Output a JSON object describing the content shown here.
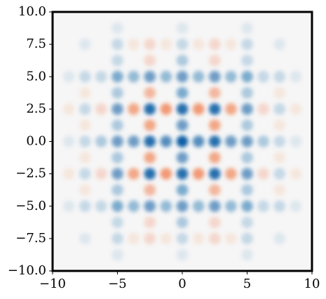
{
  "chart_data": {
    "type": "heatmap",
    "x": [
      -8.75,
      -7.5,
      -6.25,
      -5,
      -3.75,
      -2.5,
      -1.25,
      0,
      1.25,
      2.5,
      3.75,
      5,
      6.25,
      7.5,
      8.75
    ],
    "y": [
      -8.75,
      -7.5,
      -6.25,
      -5,
      -3.75,
      -2.5,
      -1.25,
      0,
      1.25,
      2.5,
      3.75,
      5,
      6.25,
      7.5,
      8.75
    ],
    "z": [
      [
        0,
        0,
        0,
        0.1,
        0,
        0,
        0,
        0.1,
        0,
        0,
        0,
        0.1,
        0,
        0,
        0
      ],
      [
        0,
        0.1,
        0,
        0.2,
        -0.1,
        -0.2,
        -0.1,
        0.2,
        -0.1,
        -0.2,
        -0.1,
        0.2,
        0,
        0.1,
        0
      ],
      [
        0,
        0,
        0,
        0.2,
        0,
        -0.2,
        0,
        0.3,
        0,
        -0.2,
        0,
        0.2,
        0,
        0,
        0
      ],
      [
        0.1,
        0.2,
        0.2,
        0.5,
        0.4,
        0.6,
        0.4,
        0.6,
        0.4,
        0.6,
        0.4,
        0.5,
        0.2,
        0.2,
        0.1
      ],
      [
        0,
        -0.1,
        0,
        0.3,
        0,
        -0.4,
        0,
        0.5,
        0,
        -0.4,
        0,
        0.3,
        0,
        -0.1,
        0
      ],
      [
        -0.1,
        0.2,
        -0.2,
        0.6,
        -0.5,
        0.9,
        -0.6,
        0.9,
        -0.6,
        0.9,
        -0.5,
        0.6,
        -0.2,
        0.2,
        -0.1
      ],
      [
        0,
        -0.1,
        0,
        0.3,
        0,
        -0.5,
        0,
        0.6,
        0,
        -0.5,
        0,
        0.3,
        0,
        -0.1,
        0
      ],
      [
        0.1,
        0.2,
        0.3,
        0.6,
        0.6,
        0.9,
        0.7,
        1.0,
        0.7,
        0.9,
        0.6,
        0.6,
        0.3,
        0.2,
        0.1
      ],
      [
        0,
        -0.1,
        0,
        0.3,
        0,
        -0.5,
        0,
        0.6,
        0,
        -0.5,
        0,
        0.3,
        0,
        -0.1,
        0
      ],
      [
        -0.1,
        0.2,
        -0.2,
        0.6,
        -0.5,
        0.9,
        -0.6,
        0.9,
        -0.6,
        0.9,
        -0.5,
        0.6,
        -0.2,
        0.2,
        -0.1
      ],
      [
        0,
        -0.1,
        0,
        0.3,
        0,
        -0.4,
        0,
        0.5,
        0,
        -0.4,
        0,
        0.3,
        0,
        -0.1,
        0
      ],
      [
        0.1,
        0.2,
        0.2,
        0.5,
        0.4,
        0.6,
        0.4,
        0.6,
        0.4,
        0.6,
        0.4,
        0.5,
        0.2,
        0.2,
        0.1
      ],
      [
        0,
        0,
        0,
        0.2,
        0,
        -0.2,
        0,
        0.3,
        0,
        -0.2,
        0,
        0.2,
        0,
        0,
        0
      ],
      [
        0,
        0.1,
        0,
        0.2,
        -0.1,
        -0.2,
        -0.1,
        0.2,
        -0.1,
        -0.2,
        -0.1,
        0.2,
        0,
        0.1,
        0
      ],
      [
        0,
        0,
        0,
        0.1,
        0,
        0,
        0,
        0.1,
        0,
        0,
        0,
        0.1,
        0,
        0,
        0
      ]
    ],
    "zlim": [
      -1,
      1
    ],
    "colors": {
      "positive": "#0b5fa5",
      "negative": "#ee5a1c",
      "background": "#f6f6f6"
    },
    "xlim": [
      -10,
      10
    ],
    "ylim": [
      -10,
      10
    ],
    "xticks": [
      {
        "value": -10,
        "label": "−10"
      },
      {
        "value": -5,
        "label": "−5"
      },
      0,
      5,
      10
    ],
    "yticks": [
      {
        "value": -10,
        "label": "−10.0"
      },
      {
        "value": -7.5,
        "label": "−7.5"
      },
      {
        "value": -5,
        "label": "−5.0"
      },
      {
        "value": -2.5,
        "label": "−2.5"
      },
      {
        "value": 0,
        "label": "0.0"
      },
      2.5,
      {
        "value": 5,
        "label": "5.0"
      },
      7.5,
      {
        "value": 10,
        "label": "10.0"
      }
    ]
  }
}
